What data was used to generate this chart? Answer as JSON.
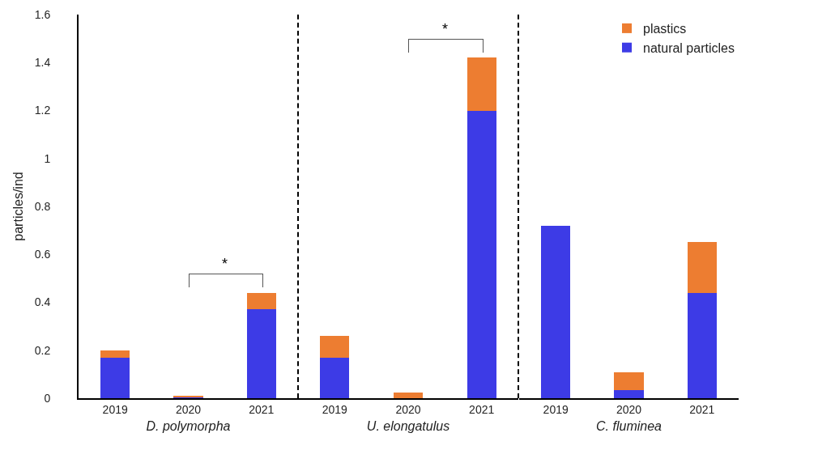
{
  "chart_data": [
    {
      "type": "bar",
      "stacked": true,
      "categories": [
        "2019",
        "2020",
        "2021"
      ],
      "xlabel": "D. polymorpha",
      "ylabel": "particles/ind",
      "ylim": [
        0,
        1.6
      ],
      "yticks": [
        0,
        0.2,
        0.4,
        0.6,
        0.8,
        1,
        1.2,
        1.4,
        1.6
      ],
      "grid": false,
      "legend": false,
      "annotations": [
        "*"
      ],
      "series": [
        {
          "color": "#3d3be6",
          "values": [
            0.17,
            0.005,
            0.37
          ]
        },
        {
          "color": "#ed7d31",
          "values": [
            0.03,
            0.005,
            0.07
          ]
        }
      ]
    },
    {
      "type": "bar",
      "stacked": true,
      "categories": [
        "2019",
        "2020",
        "2021"
      ],
      "xlabel": "U. elongatulus",
      "ylim": [
        0,
        1.6
      ],
      "yticks": [
        0,
        0.2,
        0.4,
        0.6,
        0.8,
        1,
        1.2,
        1.4,
        1.6
      ],
      "tick_labels": "x",
      "grid": false,
      "legend": false,
      "annotations": [
        "*"
      ],
      "series": [
        {
          "color": "#3d3be6",
          "values": [
            0.17,
            0,
            1.2
          ]
        },
        {
          "color": "#ed7d31",
          "values": [
            0.09,
            0.024,
            0.22
          ]
        }
      ]
    },
    {
      "type": "bar",
      "stacked": true,
      "categories": [
        "2019",
        "2020",
        "2021"
      ],
      "xlabel": "C. fluminea",
      "ylim": [
        0,
        1.6
      ],
      "yticks": [
        0,
        0.2,
        0.4,
        0.6,
        0.8,
        1,
        1.2,
        1.4,
        1.6
      ],
      "tick_labels": "x",
      "grid": false,
      "legend": "top right",
      "series": [
        {
          "name": "natural particles",
          "color": "#3d3be6",
          "values": [
            0.72,
            0.034,
            0.44
          ]
        },
        {
          "name": "plastics",
          "color": "#ed7d31",
          "values": [
            0,
            0.074,
            0.21
          ]
        }
      ]
    }
  ]
}
